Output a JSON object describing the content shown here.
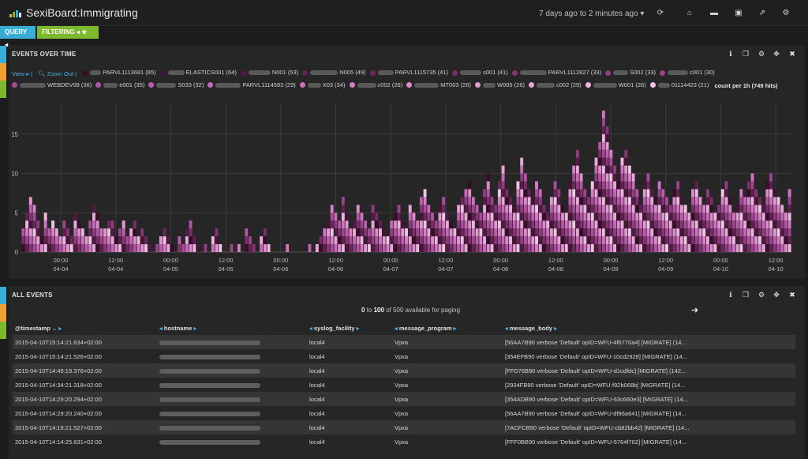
{
  "app": {
    "title": "SexiBoard:Immigrating"
  },
  "timepicker": {
    "label": "7 days ago to 2 minutes ago"
  },
  "toolbar": {
    "icons": [
      "refresh-icon",
      "home-icon",
      "folder-icon",
      "save-icon",
      "share-icon",
      "gear-icon"
    ]
  },
  "pills": {
    "query": "QUERY",
    "filtering": "FILTERING"
  },
  "colors": {
    "query": "#38aed7",
    "filtering": "#7db92c",
    "row_orange": "#f0a030",
    "link": "#46aee0"
  },
  "events_panel": {
    "title": "EVENTS OVER TIME",
    "view_label": "View",
    "zoom_label": "Zoom Out",
    "legend": [
      {
        "label": "PARVL1113681 (85)",
        "color": "#3b0a2a"
      },
      {
        "label": "ELASTICS001 (64)",
        "color": "#4a1238"
      },
      {
        "label": "N001 (53)",
        "color": "#561846"
      },
      {
        "label": "N005 (49)",
        "color": "#621f52"
      },
      {
        "label": "PARVL1115735 (41)",
        "color": "#6e265e"
      },
      {
        "label": "s001 (41)",
        "color": "#7a2d6a"
      },
      {
        "label": "PARVL1112827 (33)",
        "color": "#863476"
      },
      {
        "label": "S002 (33)",
        "color": "#923b82"
      },
      {
        "label": "c001 (30)",
        "color": "#9e438e"
      },
      {
        "label": "WEBDEV08 (36)",
        "color": "#a94b99"
      },
      {
        "label": "e001 (35)",
        "color": "#b553a4"
      },
      {
        "label": "S033 (32)",
        "color": "#c05cae"
      },
      {
        "label": "PARVL1114583 (29)",
        "color": "#c867b7"
      },
      {
        "label": "X03 (34)",
        "color": "#d072bf"
      },
      {
        "label": "c002 (26)",
        "color": "#d77ec6"
      },
      {
        "label": "MT003 (26)",
        "color": "#dd8bcc"
      },
      {
        "label": "W005 (26)",
        "color": "#e298d2"
      },
      {
        "label": "c002 (29)",
        "color": "#e7a6d8"
      },
      {
        "label": "W001 (26)",
        "color": "#ecb4de"
      },
      {
        "label": "01114423 (21)",
        "color": "#f1c4e5"
      }
    ],
    "count_label": "count per 1h",
    "hits_label": "(749 hits)",
    "tools": [
      "info-icon",
      "copy-icon",
      "gear-icon",
      "move-icon",
      "close-icon"
    ]
  },
  "chart_data": {
    "type": "bar",
    "stacked": true,
    "title": "EVENTS OVER TIME",
    "xlabel": "",
    "ylabel": "",
    "yticks": [
      "0",
      "5",
      "10",
      "15"
    ],
    "ylim": [
      0,
      19
    ],
    "xticks": [
      {
        "time": "00:00",
        "date": "04-04"
      },
      {
        "time": "12:00",
        "date": "04-04"
      },
      {
        "time": "00:00",
        "date": "04-05"
      },
      {
        "time": "12:00",
        "date": "04-05"
      },
      {
        "time": "00:00",
        "date": "04-06"
      },
      {
        "time": "12:00",
        "date": "04-06"
      },
      {
        "time": "00:00",
        "date": "04-07"
      },
      {
        "time": "12:00",
        "date": "04-07"
      },
      {
        "time": "00:00",
        "date": "04-08"
      },
      {
        "time": "12:00",
        "date": "04-08"
      },
      {
        "time": "00:00",
        "date": "04-09"
      },
      {
        "time": "12:00",
        "date": "04-09"
      },
      {
        "time": "00:00",
        "date": "04-10"
      },
      {
        "time": "12:00",
        "date": "04-10"
      }
    ],
    "grid": true,
    "legend_position": "top",
    "bar_totals": [
      3,
      5,
      7,
      6,
      4,
      2,
      5,
      3,
      4,
      3,
      2,
      4,
      3,
      2,
      5,
      4,
      3,
      2,
      4,
      6,
      5,
      3,
      3,
      4,
      4,
      2,
      3,
      4,
      2,
      3,
      4,
      2,
      3,
      2,
      1,
      0,
      1,
      2,
      3,
      2,
      1,
      0,
      2,
      1,
      3,
      4,
      2,
      1,
      0,
      1,
      0,
      2,
      3,
      1,
      0,
      0,
      1,
      0,
      1,
      0,
      3,
      2,
      1,
      0,
      2,
      3,
      1,
      0,
      0,
      0,
      0,
      1,
      0,
      0,
      0,
      0,
      0,
      1,
      0,
      1,
      2,
      3,
      4,
      6,
      5,
      4,
      7,
      5,
      3,
      4,
      6,
      5,
      4,
      3,
      6,
      5,
      4,
      3,
      2,
      4,
      5,
      6,
      4,
      3,
      6,
      5,
      4,
      7,
      8,
      6,
      5,
      4,
      6,
      7,
      5,
      4,
      3,
      6,
      7,
      8,
      9,
      7,
      6,
      5,
      8,
      10,
      7,
      6,
      9,
      11,
      8,
      7,
      6,
      9,
      12,
      10,
      8,
      7,
      9,
      8,
      6,
      5,
      7,
      9,
      8,
      6,
      5,
      9,
      11,
      13,
      10,
      8,
      7,
      9,
      12,
      14,
      18,
      16,
      13,
      11,
      9,
      12,
      13,
      11,
      10,
      8,
      6,
      9,
      10,
      8,
      7,
      9,
      8,
      7,
      6,
      8,
      9,
      7,
      6,
      5,
      8,
      9,
      7,
      6,
      8,
      7,
      5,
      6,
      8,
      9,
      7,
      5,
      6,
      8,
      7,
      9,
      10,
      8,
      7,
      6,
      9,
      10,
      8,
      7,
      6,
      5,
      8
    ]
  },
  "all_events_panel": {
    "title": "ALL EVENTS",
    "paging": {
      "from": "0",
      "to_word": "to",
      "to": "100",
      "suffix": "of 500 available for paging"
    },
    "tools": [
      "info-icon",
      "copy-icon",
      "gear-icon",
      "move-icon",
      "close-icon"
    ],
    "columns": [
      "@timestamp",
      "hostname",
      "syslog_facility",
      "message_program",
      "message_body"
    ],
    "rows": [
      {
        "timestamp": "2015-04-10T15:14:21.634+02:00",
        "facility": "local4",
        "program": "Vpxa",
        "body": "[56AA7B90 verbose 'Default' opID=WFU-4f6770a4] [MIGRATE] (14..."
      },
      {
        "timestamp": "2015-04-10T15:14:21.526+02:00",
        "facility": "local4",
        "program": "Vpxa",
        "body": "[354EFB90 verbose 'Default' opID=WFU-10cd2928] [MIGRATE] (14..."
      },
      {
        "timestamp": "2015-04-10T14:49:19.376+02:00",
        "facility": "local4",
        "program": "Vpxa",
        "body": "[FFD76B90 verbose 'Default' opID=WFU-d1cdfdc] [MIGRATE] (142..."
      },
      {
        "timestamp": "2015-04-10T14:34:21.318+02:00",
        "facility": "local4",
        "program": "Vpxa",
        "body": "[2934FB90 verbose 'Default' opID=WFU-f92b068b] [MIGRATE] (14..."
      },
      {
        "timestamp": "2015-04-10T14:29:20.294+02:00",
        "facility": "local4",
        "program": "Vpxa",
        "body": "[354ADB90 verbose 'Default' opID=WFU-63c660e3] [MIGRATE] (14..."
      },
      {
        "timestamp": "2015-04-10T14:29:20.240+02:00",
        "facility": "local4",
        "program": "Vpxa",
        "body": "[56AA7B90 verbose 'Default' opID=WFU-df96a641] [MIGRATE] (14..."
      },
      {
        "timestamp": "2015-04-10T14:19:21.527+02:00",
        "facility": "local4",
        "program": "Vpxa",
        "body": "[7ACFCB90 verbose 'Default' opID=WFU-cb82bb42] [MIGRATE] (14..."
      },
      {
        "timestamp": "2015-04-10T14:14:25.631+02:00",
        "facility": "local4",
        "program": "Vpxa",
        "body": "[FFF0BB90 verbose 'Default' opID=WFU-5764f702] [MIGRATE] (14..."
      }
    ]
  }
}
